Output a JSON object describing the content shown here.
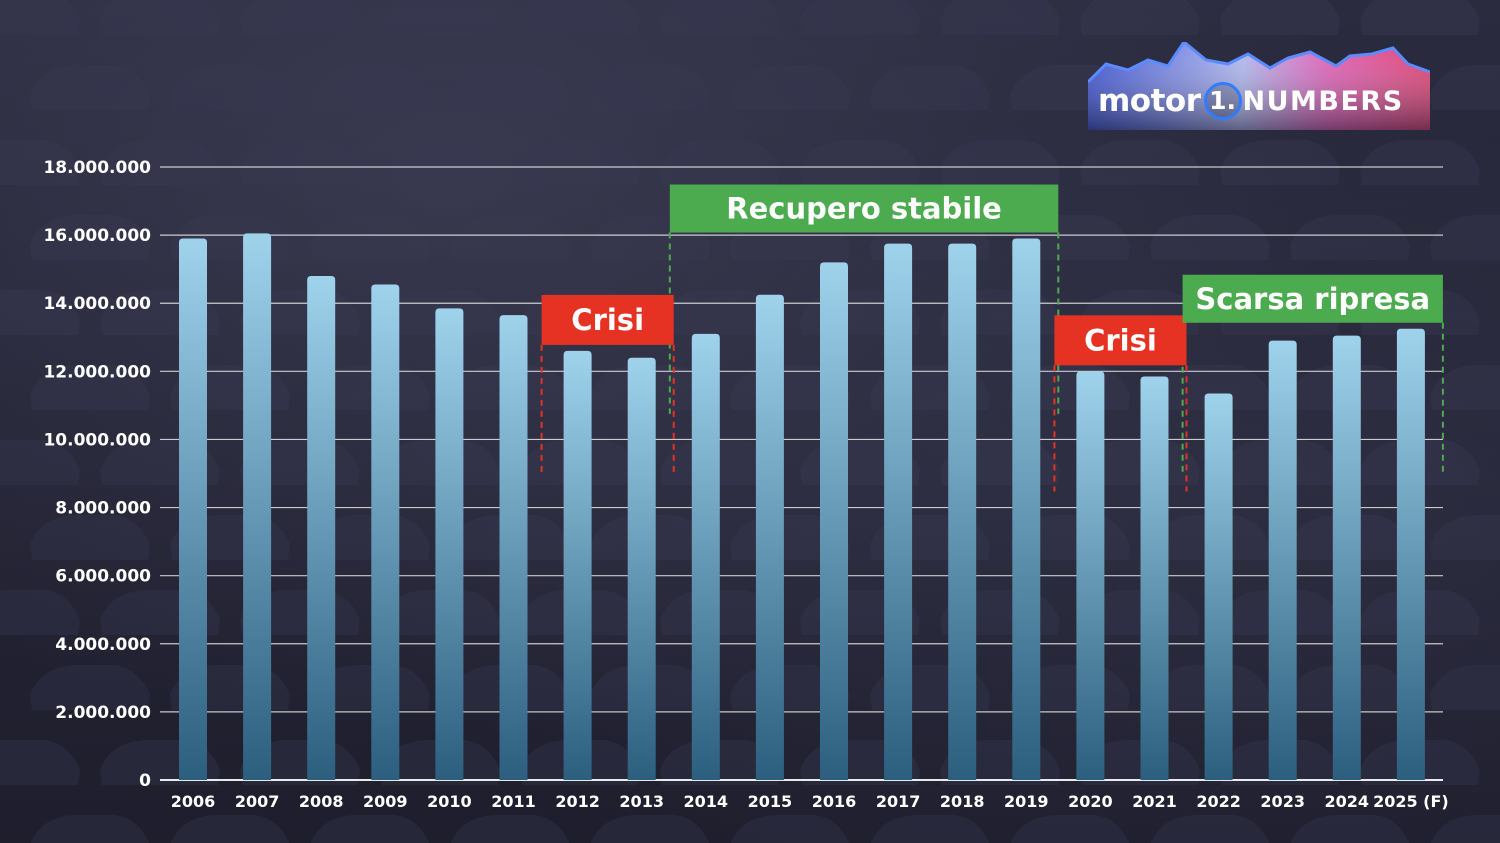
{
  "logo": {
    "motor": "motor",
    "one": "1.",
    "numbers": "NUMBERS"
  },
  "colors": {
    "bar_top": "#9fd3ec",
    "bar_bottom": "#2c5f7e",
    "grid": "#ffffff",
    "crisis": "#e53222",
    "recovery": "#4cab4f",
    "logo_ring": "#2f7dff"
  },
  "chart_data": {
    "type": "bar",
    "title": "",
    "xlabel": "",
    "ylabel": "",
    "ylim": [
      0,
      18000000
    ],
    "ytick_values": [
      0,
      2000000,
      4000000,
      6000000,
      8000000,
      10000000,
      12000000,
      14000000,
      16000000,
      18000000
    ],
    "ytick_labels": [
      "0",
      "2.000.000",
      "4.000.000",
      "6.000.000",
      "8.000.000",
      "10.000.000",
      "12.000.000",
      "14.000.000",
      "16.000.000",
      "18.000.000"
    ],
    "grid": true,
    "categories": [
      "2006",
      "2007",
      "2008",
      "2009",
      "2010",
      "2011",
      "2012",
      "2013",
      "2014",
      "2015",
      "2016",
      "2017",
      "2018",
      "2019",
      "2020",
      "2021",
      "2022",
      "2023",
      "2024",
      "2025 (F)"
    ],
    "values": [
      15900000,
      16050000,
      14800000,
      14550000,
      13850000,
      13650000,
      12600000,
      12400000,
      13100000,
      14250000,
      15200000,
      15750000,
      15750000,
      15900000,
      12000000,
      11850000,
      11350000,
      12900000,
      13050000,
      13250000
    ],
    "annotations": [
      {
        "label": "Crisi",
        "kind": "crisis",
        "from": "2012",
        "to": "2013"
      },
      {
        "label": "Recupero stabile",
        "kind": "recovery",
        "from": "2014",
        "to": "2019"
      },
      {
        "label": "Crisi",
        "kind": "crisis",
        "from": "2020",
        "to": "2021"
      },
      {
        "label": "Scarsa ripresa",
        "kind": "recovery",
        "from": "2022",
        "to": "2025 (F)"
      }
    ]
  }
}
